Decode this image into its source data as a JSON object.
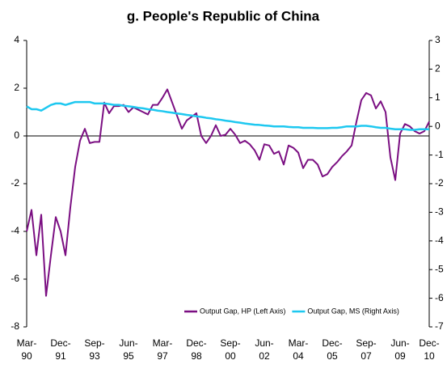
{
  "chart_data": {
    "type": "line",
    "title": "g. People's Republic of China",
    "categories": [
      "Mar-90",
      null,
      null,
      null,
      null,
      null,
      null,
      "Dec-91",
      null,
      null,
      null,
      null,
      null,
      null,
      "Sep-93",
      null,
      null,
      null,
      null,
      null,
      null,
      "Jun-95",
      null,
      null,
      null,
      null,
      null,
      null,
      "Mar-97",
      null,
      null,
      null,
      null,
      null,
      null,
      "Dec-98",
      null,
      null,
      null,
      null,
      null,
      null,
      "Sep-00",
      null,
      null,
      null,
      null,
      null,
      null,
      "Jun-02",
      null,
      null,
      null,
      null,
      null,
      null,
      "Mar-04",
      null,
      null,
      null,
      null,
      null,
      null,
      "Dec-05",
      null,
      null,
      null,
      null,
      null,
      null,
      "Sep-07",
      null,
      null,
      null,
      null,
      null,
      null,
      "Jun-09",
      null,
      null,
      null,
      null,
      null,
      "Dec-10"
    ],
    "series": [
      {
        "name": "Output Gap, HP (Left Axis)",
        "color": "#7b0f82",
        "axis": "y",
        "values": [
          -4.0,
          -3.1,
          -5.0,
          -3.3,
          -6.7,
          -5.0,
          -3.4,
          -4.0,
          -5.0,
          -3.0,
          -1.3,
          -0.2,
          0.3,
          -0.3,
          -0.25,
          -0.25,
          1.4,
          0.95,
          1.25,
          1.25,
          1.3,
          1.0,
          1.2,
          1.1,
          1.0,
          0.9,
          1.3,
          1.3,
          1.6,
          1.95,
          1.4,
          0.85,
          0.3,
          0.65,
          0.8,
          0.95,
          0.0,
          -0.3,
          0.0,
          0.45,
          0.0,
          0.05,
          0.3,
          0.05,
          -0.3,
          -0.2,
          -0.35,
          -0.6,
          -1.0,
          -0.35,
          -0.4,
          -0.75,
          -0.65,
          -1.2,
          -0.4,
          -0.5,
          -0.7,
          -1.35,
          -1.0,
          -1.0,
          -1.2,
          -1.7,
          -1.6,
          -1.3,
          -1.1,
          -0.85,
          -0.65,
          -0.4,
          0.6,
          1.5,
          1.8,
          1.7,
          1.15,
          1.45,
          1.0,
          -0.9,
          -1.85,
          0.1,
          0.5,
          0.4,
          0.2,
          0.1,
          0.2,
          0.6
        ]
      },
      {
        "name": "Output Gap, MS (Right Axis)",
        "color": "#1ec8f0",
        "axis": "y2",
        "values": [
          0.7,
          0.6,
          0.6,
          0.55,
          0.65,
          0.75,
          0.8,
          0.8,
          0.75,
          0.8,
          0.85,
          0.85,
          0.85,
          0.85,
          0.8,
          0.8,
          0.8,
          0.78,
          0.75,
          0.75,
          0.72,
          0.7,
          0.68,
          0.65,
          0.63,
          0.6,
          0.58,
          0.55,
          0.53,
          0.5,
          0.48,
          0.45,
          0.43,
          0.4,
          0.38,
          0.35,
          0.33,
          0.3,
          0.28,
          0.25,
          0.23,
          0.2,
          0.18,
          0.15,
          0.13,
          0.1,
          0.08,
          0.06,
          0.05,
          0.03,
          0.02,
          0.0,
          0.0,
          0.0,
          -0.02,
          -0.03,
          -0.03,
          -0.05,
          -0.05,
          -0.05,
          -0.06,
          -0.06,
          -0.06,
          -0.05,
          -0.05,
          -0.03,
          0.0,
          0.0,
          0.0,
          0.02,
          0.02,
          0.0,
          -0.03,
          -0.05,
          -0.05,
          -0.08,
          -0.1,
          -0.1,
          -0.1,
          -0.12,
          -0.12,
          -0.1,
          -0.1,
          -0.1
        ]
      }
    ],
    "ylim": [
      -8,
      4
    ],
    "yticks": [
      -8,
      -6,
      -4,
      -2,
      0,
      2,
      4
    ],
    "y2lim": [
      -7,
      3
    ],
    "y2ticks": [
      -7,
      -6,
      -5,
      -4,
      -3,
      -2,
      -1,
      0,
      1,
      2,
      3
    ],
    "legend": "lower right"
  }
}
